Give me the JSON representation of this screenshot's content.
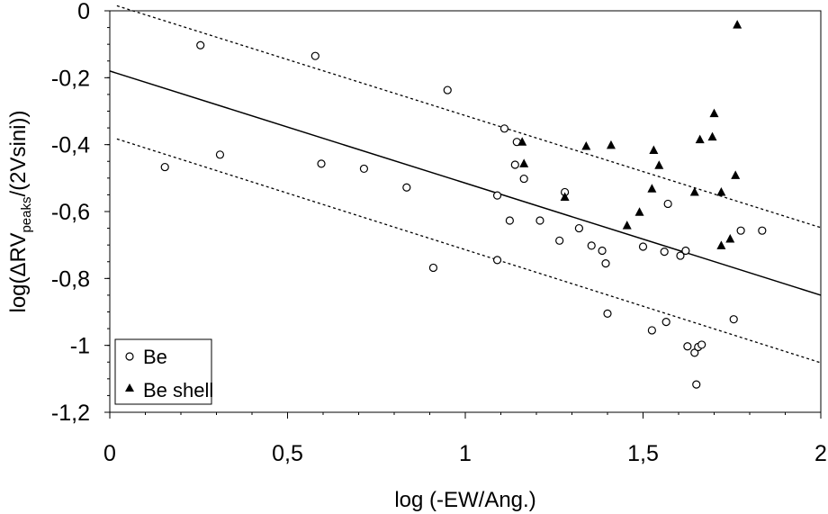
{
  "chart_data": {
    "type": "scatter",
    "xlabel": "log (-EW/Ang.)",
    "ylabel": {
      "prefix": "log(",
      "delta": "Δ",
      "main": "RV",
      "sub": "peaks",
      "suffix": "/(2Vsini))"
    },
    "xlim": [
      0,
      2
    ],
    "ylim": [
      -1.2,
      0
    ],
    "xticks": [
      {
        "value": 0,
        "label": "0"
      },
      {
        "value": 0.5,
        "label": "0,5"
      },
      {
        "value": 1,
        "label": "1"
      },
      {
        "value": 1.5,
        "label": "1,5"
      },
      {
        "value": 2,
        "label": "2"
      }
    ],
    "yticks": [
      {
        "value": 0,
        "label": "0"
      },
      {
        "value": -0.2,
        "label": "-0,2"
      },
      {
        "value": -0.4,
        "label": "-0,4"
      },
      {
        "value": -0.6,
        "label": "-0,6"
      },
      {
        "value": -0.8,
        "label": "-0,8"
      },
      {
        "value": -1,
        "label": "-1"
      },
      {
        "value": -1.2,
        "label": "-1,2"
      }
    ],
    "legend_position": "bottom-left",
    "series": [
      {
        "name": "Be",
        "marker": "open-circle",
        "color": "#000000",
        "points": [
          [
            0.155,
            -0.467
          ],
          [
            0.255,
            -0.103
          ],
          [
            0.31,
            -0.43
          ],
          [
            0.578,
            -0.135
          ],
          [
            0.595,
            -0.457
          ],
          [
            0.715,
            -0.472
          ],
          [
            0.835,
            -0.528
          ],
          [
            0.91,
            -0.768
          ],
          [
            0.95,
            -0.237
          ],
          [
            1.09,
            -0.552
          ],
          [
            1.09,
            -0.745
          ],
          [
            1.11,
            -0.352
          ],
          [
            1.125,
            -0.627
          ],
          [
            1.14,
            -0.46
          ],
          [
            1.145,
            -0.392
          ],
          [
            1.165,
            -0.502
          ],
          [
            1.21,
            -0.627
          ],
          [
            1.265,
            -0.687
          ],
          [
            1.28,
            -0.542
          ],
          [
            1.32,
            -0.65
          ],
          [
            1.355,
            -0.702
          ],
          [
            1.385,
            -0.717
          ],
          [
            1.395,
            -0.755
          ],
          [
            1.4,
            -0.905
          ],
          [
            1.5,
            -0.705
          ],
          [
            1.525,
            -0.955
          ],
          [
            1.56,
            -0.72
          ],
          [
            1.565,
            -0.93
          ],
          [
            1.57,
            -0.577
          ],
          [
            1.605,
            -0.732
          ],
          [
            1.62,
            -0.717
          ],
          [
            1.625,
            -1.003
          ],
          [
            1.645,
            -1.022
          ],
          [
            1.65,
            -1.117
          ],
          [
            1.655,
            -1.005
          ],
          [
            1.665,
            -0.998
          ],
          [
            1.755,
            -0.922
          ],
          [
            1.775,
            -0.657
          ],
          [
            1.835,
            -0.657
          ]
        ]
      },
      {
        "name": "Be shell",
        "marker": "filled-triangle",
        "color": "#000000",
        "points": [
          [
            1.16,
            -0.392
          ],
          [
            1.165,
            -0.457
          ],
          [
            1.28,
            -0.557
          ],
          [
            1.34,
            -0.405
          ],
          [
            1.41,
            -0.402
          ],
          [
            1.455,
            -0.642
          ],
          [
            1.49,
            -0.602
          ],
          [
            1.525,
            -0.532
          ],
          [
            1.53,
            -0.417
          ],
          [
            1.545,
            -0.462
          ],
          [
            1.645,
            -0.542
          ],
          [
            1.66,
            -0.385
          ],
          [
            1.695,
            -0.377
          ],
          [
            1.7,
            -0.307
          ],
          [
            1.72,
            -0.542
          ],
          [
            1.72,
            -0.702
          ],
          [
            1.745,
            -0.682
          ],
          [
            1.76,
            -0.492
          ],
          [
            1.765,
            -0.042
          ]
        ]
      }
    ],
    "fit_lines": [
      {
        "style": "solid",
        "color": "#000000",
        "x": [
          0,
          2
        ],
        "y": [
          -0.18,
          -0.85
        ]
      },
      {
        "style": "dotted",
        "color": "#000000",
        "x": [
          0.02,
          2
        ],
        "y": [
          0.015,
          -0.648
        ]
      },
      {
        "style": "dotted",
        "color": "#000000",
        "x": [
          0.02,
          2
        ],
        "y": [
          -0.383,
          -1.052
        ]
      }
    ]
  }
}
